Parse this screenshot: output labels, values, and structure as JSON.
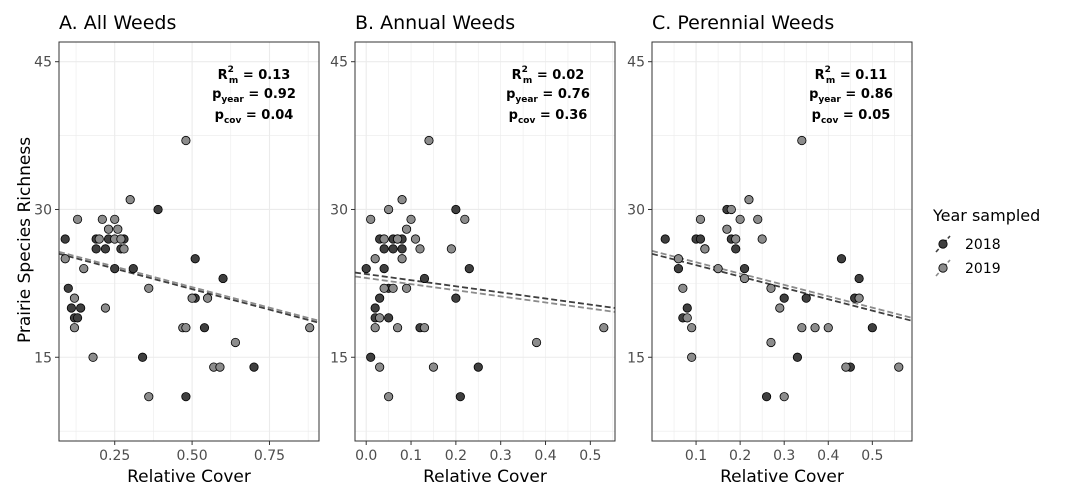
{
  "figure": {
    "ylabel": "Prairie Species Richness",
    "legend": {
      "title": "Year sampled",
      "placement": "right",
      "entries": [
        {
          "label": "2018",
          "color": "#3f3f3f"
        },
        {
          "label": "2019",
          "color": "#8c8c8c"
        }
      ]
    }
  },
  "chart_data": [
    {
      "type": "scatter",
      "title": "A. All Weeds",
      "xlabel": "Relative Cover",
      "xlim": [
        0.07,
        0.91
      ],
      "ylim": [
        6.5,
        47
      ],
      "xticks": [
        0.25,
        0.5,
        0.75
      ],
      "xtick_labels": [
        "0.25",
        "0.50",
        "0.75"
      ],
      "yticks": [
        15,
        30,
        45
      ],
      "ytick_labels": [
        "15",
        "30",
        "45"
      ],
      "stats": {
        "r2_label": "R",
        "r2_sup": "2",
        "r2_sub": "m",
        "r2_val": " = 0.13",
        "p1_label": "p",
        "p1_sub": "year",
        "p1_val": " = 0.92",
        "p2_label": "p",
        "p2_sub": "cov",
        "p2_val": " = 0.04"
      },
      "fits": [
        {
          "series": "2018",
          "x": [
            0.07,
            0.91
          ],
          "y": [
            25.5,
            18.5
          ]
        },
        {
          "series": "2019",
          "x": [
            0.07,
            0.91
          ],
          "y": [
            25.7,
            18.7
          ]
        }
      ],
      "series": [
        {
          "name": "2018",
          "points": [
            [
              0.09,
              27
            ],
            [
              0.1,
              22
            ],
            [
              0.11,
              20
            ],
            [
              0.12,
              19
            ],
            [
              0.13,
              19
            ],
            [
              0.14,
              20
            ],
            [
              0.19,
              27
            ],
            [
              0.19,
              26
            ],
            [
              0.22,
              26
            ],
            [
              0.23,
              27
            ],
            [
              0.25,
              24
            ],
            [
              0.27,
              26
            ],
            [
              0.28,
              27
            ],
            [
              0.31,
              24
            ],
            [
              0.34,
              15
            ],
            [
              0.39,
              30
            ],
            [
              0.48,
              11
            ],
            [
              0.51,
              25
            ],
            [
              0.51,
              21
            ],
            [
              0.54,
              18
            ],
            [
              0.6,
              23
            ],
            [
              0.7,
              14
            ]
          ]
        },
        {
          "name": "2019",
          "points": [
            [
              0.09,
              25
            ],
            [
              0.12,
              21
            ],
            [
              0.12,
              18
            ],
            [
              0.13,
              29
            ],
            [
              0.15,
              24
            ],
            [
              0.18,
              15
            ],
            [
              0.2,
              27
            ],
            [
              0.21,
              29
            ],
            [
              0.22,
              20
            ],
            [
              0.23,
              28
            ],
            [
              0.25,
              27
            ],
            [
              0.25,
              29
            ],
            [
              0.26,
              28
            ],
            [
              0.27,
              27
            ],
            [
              0.28,
              26
            ],
            [
              0.3,
              31
            ],
            [
              0.36,
              22
            ],
            [
              0.36,
              11
            ],
            [
              0.47,
              18
            ],
            [
              0.48,
              37
            ],
            [
              0.48,
              18
            ],
            [
              0.5,
              21
            ],
            [
              0.55,
              21
            ],
            [
              0.57,
              14
            ],
            [
              0.59,
              14
            ],
            [
              0.64,
              16.5
            ],
            [
              0.88,
              18
            ]
          ]
        }
      ]
    },
    {
      "type": "scatter",
      "title": "B. Annual Weeds",
      "xlabel": "Relative Cover",
      "xlim": [
        -0.025,
        0.555
      ],
      "ylim": [
        6.5,
        47
      ],
      "xticks": [
        0,
        0.1,
        0.2,
        0.3,
        0.4,
        0.5
      ],
      "xtick_labels": [
        "0.0",
        "0.1",
        "0.2",
        "0.3",
        "0.4",
        "0.5"
      ],
      "yticks": [
        15,
        30,
        45
      ],
      "ytick_labels": [
        "15",
        "30",
        "45"
      ],
      "stats": {
        "r2_label": "R",
        "r2_sup": "2",
        "r2_sub": "m",
        "r2_val": " = 0.02",
        "p1_label": "p",
        "p1_sub": "year",
        "p1_val": " = 0.76",
        "p2_label": "p",
        "p2_sub": "cov",
        "p2_val": " = 0.36"
      },
      "fits": [
        {
          "series": "2018",
          "x": [
            -0.025,
            0.555
          ],
          "y": [
            23.6,
            20.0
          ]
        },
        {
          "series": "2019",
          "x": [
            -0.025,
            0.555
          ],
          "y": [
            23.2,
            19.6
          ]
        }
      ],
      "series": [
        {
          "name": "2018",
          "points": [
            [
              0.0,
              24
            ],
            [
              0.01,
              15
            ],
            [
              0.02,
              20
            ],
            [
              0.02,
              19
            ],
            [
              0.03,
              27
            ],
            [
              0.03,
              21
            ],
            [
              0.04,
              26
            ],
            [
              0.04,
              24
            ],
            [
              0.05,
              22
            ],
            [
              0.05,
              19
            ],
            [
              0.06,
              26
            ],
            [
              0.06,
              27
            ],
            [
              0.07,
              27
            ],
            [
              0.08,
              27
            ],
            [
              0.08,
              26
            ],
            [
              0.12,
              18
            ],
            [
              0.13,
              23
            ],
            [
              0.2,
              30
            ],
            [
              0.2,
              21
            ],
            [
              0.21,
              11
            ],
            [
              0.23,
              24
            ],
            [
              0.25,
              14
            ]
          ]
        },
        {
          "name": "2019",
          "points": [
            [
              0.01,
              29
            ],
            [
              0.02,
              18
            ],
            [
              0.02,
              25
            ],
            [
              0.03,
              14
            ],
            [
              0.03,
              19
            ],
            [
              0.04,
              27
            ],
            [
              0.04,
              22
            ],
            [
              0.05,
              30
            ],
            [
              0.05,
              11
            ],
            [
              0.06,
              22
            ],
            [
              0.07,
              27
            ],
            [
              0.07,
              18
            ],
            [
              0.08,
              25
            ],
            [
              0.08,
              31
            ],
            [
              0.09,
              22
            ],
            [
              0.09,
              28
            ],
            [
              0.1,
              29
            ],
            [
              0.11,
              27
            ],
            [
              0.12,
              26
            ],
            [
              0.13,
              18
            ],
            [
              0.14,
              37
            ],
            [
              0.15,
              14
            ],
            [
              0.19,
              26
            ],
            [
              0.22,
              29
            ],
            [
              0.38,
              16.5
            ],
            [
              0.53,
              18
            ]
          ]
        }
      ]
    },
    {
      "type": "scatter",
      "title": "C. Perennial Weeds",
      "xlabel": "Relative Cover",
      "xlim": [
        0.0,
        0.59
      ],
      "ylim": [
        6.5,
        47
      ],
      "xticks": [
        0.1,
        0.2,
        0.3,
        0.4,
        0.5
      ],
      "xtick_labels": [
        "0.1",
        "0.2",
        "0.3",
        "0.4",
        "0.5"
      ],
      "yticks": [
        15,
        30,
        45
      ],
      "ytick_labels": [
        "15",
        "30",
        "45"
      ],
      "stats": {
        "r2_label": "R",
        "r2_sup": "2",
        "r2_sub": "m",
        "r2_val": " = 0.11",
        "p1_label": "p",
        "p1_sub": "year",
        "p1_val": " = 0.86",
        "p2_label": "p",
        "p2_sub": "cov",
        "p2_val": " = 0.05"
      },
      "fits": [
        {
          "series": "2018",
          "x": [
            0.0,
            0.59
          ],
          "y": [
            25.5,
            18.7
          ]
        },
        {
          "series": "2019",
          "x": [
            0.0,
            0.59
          ],
          "y": [
            25.8,
            19.0
          ]
        }
      ],
      "series": [
        {
          "name": "2018",
          "points": [
            [
              0.03,
              27
            ],
            [
              0.06,
              24
            ],
            [
              0.07,
              19
            ],
            [
              0.08,
              20
            ],
            [
              0.1,
              27
            ],
            [
              0.11,
              27
            ],
            [
              0.12,
              26
            ],
            [
              0.17,
              30
            ],
            [
              0.18,
              27
            ],
            [
              0.19,
              26
            ],
            [
              0.21,
              24
            ],
            [
              0.26,
              11
            ],
            [
              0.3,
              21
            ],
            [
              0.33,
              15
            ],
            [
              0.35,
              21
            ],
            [
              0.43,
              25
            ],
            [
              0.45,
              14
            ],
            [
              0.46,
              21
            ],
            [
              0.47,
              23
            ],
            [
              0.5,
              18
            ]
          ]
        },
        {
          "name": "2019",
          "points": [
            [
              0.06,
              25
            ],
            [
              0.07,
              22
            ],
            [
              0.08,
              19
            ],
            [
              0.09,
              15
            ],
            [
              0.09,
              18
            ],
            [
              0.11,
              29
            ],
            [
              0.12,
              26
            ],
            [
              0.15,
              24
            ],
            [
              0.17,
              28
            ],
            [
              0.18,
              30
            ],
            [
              0.19,
              27
            ],
            [
              0.2,
              29
            ],
            [
              0.21,
              23
            ],
            [
              0.22,
              31
            ],
            [
              0.24,
              29
            ],
            [
              0.25,
              27
            ],
            [
              0.27,
              22
            ],
            [
              0.27,
              16.5
            ],
            [
              0.29,
              20
            ],
            [
              0.3,
              11
            ],
            [
              0.34,
              37
            ],
            [
              0.34,
              18
            ],
            [
              0.37,
              18
            ],
            [
              0.4,
              18
            ],
            [
              0.44,
              14
            ],
            [
              0.47,
              21
            ],
            [
              0.56,
              14
            ]
          ]
        }
      ]
    }
  ]
}
